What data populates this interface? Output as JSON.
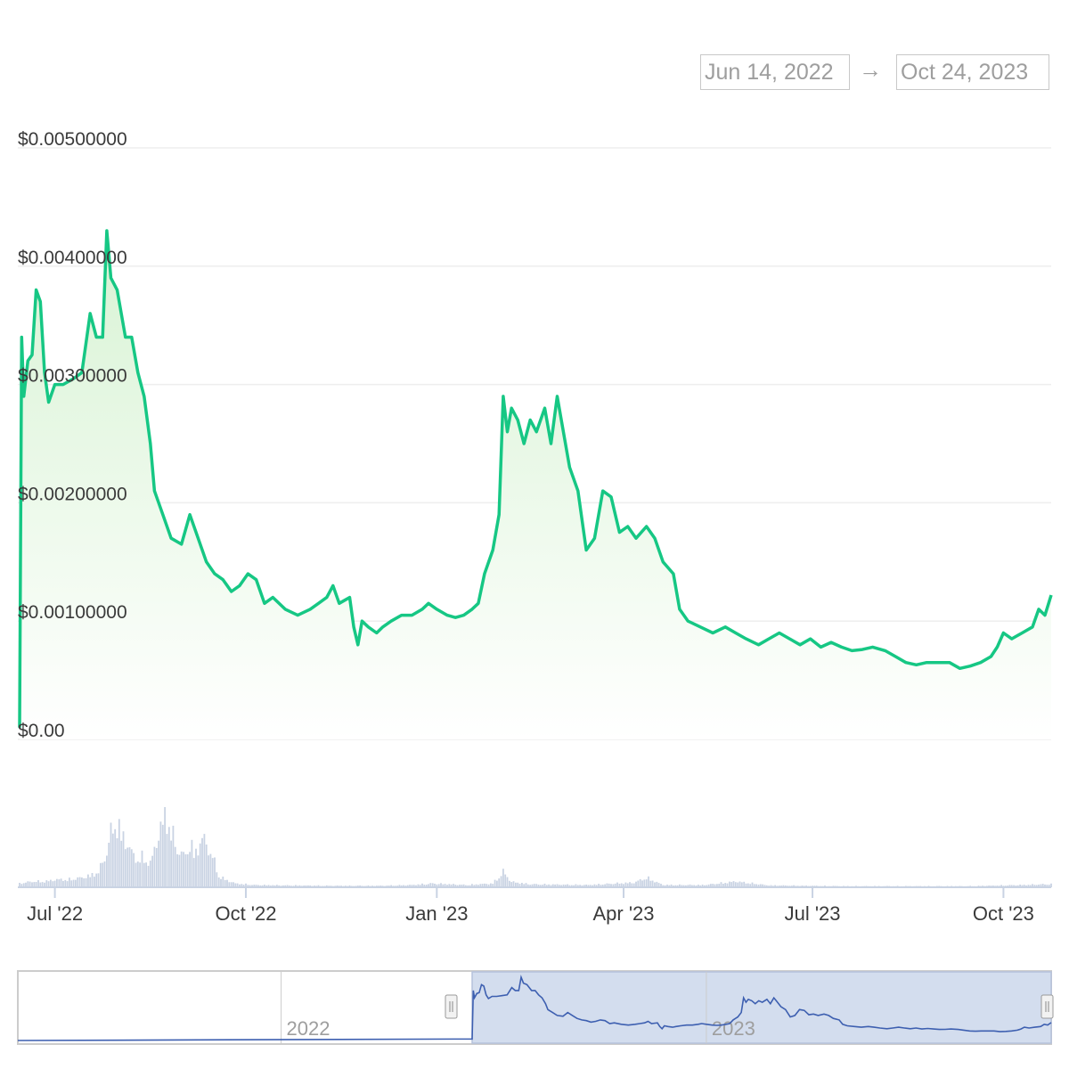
{
  "range_selector": {
    "from": "Jun 14, 2022",
    "arrow": "→",
    "to": "Oct 24, 2023"
  },
  "colors": {
    "price_line": "#16c784",
    "price_fill_top": "#d8f3d4",
    "volume_bar": "#c9d3e3",
    "navigator_line": "#3d5fb0",
    "navigator_selection": "#d3ddee",
    "grid": "#eeeeee",
    "axis_text": "#3a3a3a",
    "muted_text": "#9e9e9e"
  },
  "chart_data": {
    "type": "line",
    "title": "",
    "xlabel": "",
    "ylabel": "",
    "y_ticks": [
      "$0.00",
      "$0.00100000",
      "$0.00200000",
      "$0.00300000",
      "$0.00400000",
      "$0.00500000"
    ],
    "ylim": [
      0,
      0.005
    ],
    "x_ticks": [
      {
        "label": "Jul '22",
        "date": "2022-07-01"
      },
      {
        "label": "Oct '22",
        "date": "2022-10-01"
      },
      {
        "label": "Jan '23",
        "date": "2023-01-01"
      },
      {
        "label": "Apr '23",
        "date": "2023-04-01"
      },
      {
        "label": "Jul '23",
        "date": "2023-07-01"
      },
      {
        "label": "Oct '23",
        "date": "2023-10-01"
      }
    ],
    "xlim": [
      "2022-06-14",
      "2023-10-24"
    ],
    "grid": true,
    "legend": "none",
    "series": [
      {
        "values": [
          [
            "2022-06-14",
            0.0001
          ],
          [
            "2022-06-15",
            0.0034
          ],
          [
            "2022-06-16",
            0.0029
          ],
          [
            "2022-06-18",
            0.0032
          ],
          [
            "2022-06-20",
            0.00325
          ],
          [
            "2022-06-22",
            0.0038
          ],
          [
            "2022-06-24",
            0.0037
          ],
          [
            "2022-06-26",
            0.0031
          ],
          [
            "2022-06-28",
            0.00285
          ],
          [
            "2022-07-01",
            0.003
          ],
          [
            "2022-07-05",
            0.003
          ],
          [
            "2022-07-10",
            0.00305
          ],
          [
            "2022-07-14",
            0.0031
          ],
          [
            "2022-07-18",
            0.0036
          ],
          [
            "2022-07-21",
            0.0034
          ],
          [
            "2022-07-24",
            0.0034
          ],
          [
            "2022-07-26",
            0.0043
          ],
          [
            "2022-07-28",
            0.0039
          ],
          [
            "2022-07-31",
            0.0038
          ],
          [
            "2022-08-04",
            0.0034
          ],
          [
            "2022-08-07",
            0.0034
          ],
          [
            "2022-08-10",
            0.0031
          ],
          [
            "2022-08-13",
            0.0029
          ],
          [
            "2022-08-16",
            0.0025
          ],
          [
            "2022-08-18",
            0.0021
          ],
          [
            "2022-08-22",
            0.0019
          ],
          [
            "2022-08-26",
            0.0017
          ],
          [
            "2022-08-31",
            0.00165
          ],
          [
            "2022-09-04",
            0.0019
          ],
          [
            "2022-09-08",
            0.0017
          ],
          [
            "2022-09-12",
            0.0015
          ],
          [
            "2022-09-16",
            0.0014
          ],
          [
            "2022-09-20",
            0.00135
          ],
          [
            "2022-09-24",
            0.00125
          ],
          [
            "2022-09-28",
            0.0013
          ],
          [
            "2022-10-02",
            0.0014
          ],
          [
            "2022-10-06",
            0.00135
          ],
          [
            "2022-10-10",
            0.00115
          ],
          [
            "2022-10-14",
            0.0012
          ],
          [
            "2022-10-20",
            0.0011
          ],
          [
            "2022-10-26",
            0.00105
          ],
          [
            "2022-11-01",
            0.0011
          ],
          [
            "2022-11-05",
            0.00115
          ],
          [
            "2022-11-09",
            0.0012
          ],
          [
            "2022-11-12",
            0.0013
          ],
          [
            "2022-11-15",
            0.00115
          ],
          [
            "2022-11-18",
            0.00118
          ],
          [
            "2022-11-20",
            0.0012
          ],
          [
            "2022-11-22",
            0.00095
          ],
          [
            "2022-11-24",
            0.0008
          ],
          [
            "2022-11-26",
            0.001
          ],
          [
            "2022-11-29",
            0.00095
          ],
          [
            "2022-12-03",
            0.0009
          ],
          [
            "2022-12-06",
            0.00095
          ],
          [
            "2022-12-10",
            0.001
          ],
          [
            "2022-12-15",
            0.00105
          ],
          [
            "2022-12-20",
            0.00105
          ],
          [
            "2022-12-25",
            0.0011
          ],
          [
            "2022-12-28",
            0.00115
          ],
          [
            "2023-01-01",
            0.0011
          ],
          [
            "2023-01-06",
            0.00105
          ],
          [
            "2023-01-10",
            0.00103
          ],
          [
            "2023-01-14",
            0.00105
          ],
          [
            "2023-01-18",
            0.0011
          ],
          [
            "2023-01-21",
            0.00115
          ],
          [
            "2023-01-24",
            0.0014
          ],
          [
            "2023-01-28",
            0.0016
          ],
          [
            "2023-01-31",
            0.0019
          ],
          [
            "2023-02-02",
            0.0029
          ],
          [
            "2023-02-04",
            0.0026
          ],
          [
            "2023-02-06",
            0.0028
          ],
          [
            "2023-02-09",
            0.0027
          ],
          [
            "2023-02-12",
            0.0025
          ],
          [
            "2023-02-15",
            0.0027
          ],
          [
            "2023-02-18",
            0.0026
          ],
          [
            "2023-02-22",
            0.0028
          ],
          [
            "2023-02-25",
            0.0025
          ],
          [
            "2023-02-28",
            0.0029
          ],
          [
            "2023-03-02",
            0.0027
          ],
          [
            "2023-03-06",
            0.0023
          ],
          [
            "2023-03-10",
            0.0021
          ],
          [
            "2023-03-14",
            0.0016
          ],
          [
            "2023-03-18",
            0.0017
          ],
          [
            "2023-03-22",
            0.0021
          ],
          [
            "2023-03-26",
            0.00205
          ],
          [
            "2023-03-30",
            0.00175
          ],
          [
            "2023-04-03",
            0.0018
          ],
          [
            "2023-04-07",
            0.0017
          ],
          [
            "2023-04-12",
            0.0018
          ],
          [
            "2023-04-16",
            0.0017
          ],
          [
            "2023-04-20",
            0.0015
          ],
          [
            "2023-04-25",
            0.0014
          ],
          [
            "2023-04-28",
            0.0011
          ],
          [
            "2023-05-02",
            0.001
          ],
          [
            "2023-05-08",
            0.00095
          ],
          [
            "2023-05-14",
            0.0009
          ],
          [
            "2023-05-20",
            0.00095
          ],
          [
            "2023-05-25",
            0.0009
          ],
          [
            "2023-05-30",
            0.00085
          ],
          [
            "2023-06-05",
            0.0008
          ],
          [
            "2023-06-10",
            0.00085
          ],
          [
            "2023-06-15",
            0.0009
          ],
          [
            "2023-06-20",
            0.00085
          ],
          [
            "2023-06-25",
            0.0008
          ],
          [
            "2023-06-30",
            0.00085
          ],
          [
            "2023-07-05",
            0.00078
          ],
          [
            "2023-07-10",
            0.00082
          ],
          [
            "2023-07-15",
            0.00078
          ],
          [
            "2023-07-20",
            0.00075
          ],
          [
            "2023-07-25",
            0.00076
          ],
          [
            "2023-07-30",
            0.00078
          ],
          [
            "2023-08-05",
            0.00075
          ],
          [
            "2023-08-10",
            0.0007
          ],
          [
            "2023-08-15",
            0.00065
          ],
          [
            "2023-08-20",
            0.00063
          ],
          [
            "2023-08-25",
            0.00065
          ],
          [
            "2023-08-30",
            0.00065
          ],
          [
            "2023-09-05",
            0.00065
          ],
          [
            "2023-09-10",
            0.0006
          ],
          [
            "2023-09-15",
            0.00062
          ],
          [
            "2023-09-20",
            0.00065
          ],
          [
            "2023-09-25",
            0.0007
          ],
          [
            "2023-09-28",
            0.00078
          ],
          [
            "2023-10-01",
            0.0009
          ],
          [
            "2023-10-05",
            0.00085
          ],
          [
            "2023-10-10",
            0.0009
          ],
          [
            "2023-10-15",
            0.00095
          ],
          [
            "2023-10-18",
            0.0011
          ],
          [
            "2023-10-21",
            0.00105
          ],
          [
            "2023-10-24",
            0.00122
          ]
        ]
      }
    ],
    "volume": {
      "type": "bar",
      "values": [
        [
          "2022-06-14",
          1
        ],
        [
          "2022-06-20",
          1.5
        ],
        [
          "2022-06-26",
          1.5
        ],
        [
          "2022-07-02",
          2
        ],
        [
          "2022-07-08",
          2
        ],
        [
          "2022-07-14",
          2.5
        ],
        [
          "2022-07-18",
          3
        ],
        [
          "2022-07-22",
          4
        ],
        [
          "2022-07-26",
          9
        ],
        [
          "2022-07-28",
          14
        ],
        [
          "2022-07-30",
          17
        ],
        [
          "2022-08-01",
          15
        ],
        [
          "2022-08-04",
          12
        ],
        [
          "2022-08-07",
          9
        ],
        [
          "2022-08-10",
          7
        ],
        [
          "2022-08-13",
          8
        ],
        [
          "2022-08-16",
          6
        ],
        [
          "2022-08-19",
          12
        ],
        [
          "2022-08-21",
          15
        ],
        [
          "2022-08-23",
          19
        ],
        [
          "2022-08-25",
          16
        ],
        [
          "2022-08-27",
          13
        ],
        [
          "2022-08-29",
          10
        ],
        [
          "2022-09-01",
          8
        ],
        [
          "2022-09-04",
          11
        ],
        [
          "2022-09-07",
          9
        ],
        [
          "2022-09-10",
          13
        ],
        [
          "2022-09-12",
          11
        ],
        [
          "2022-09-15",
          8
        ],
        [
          "2022-09-18",
          3
        ],
        [
          "2022-09-21",
          2
        ],
        [
          "2022-09-26",
          1
        ],
        [
          "2022-10-05",
          0.6
        ],
        [
          "2022-10-20",
          0.5
        ],
        [
          "2022-11-10",
          0.4
        ],
        [
          "2022-12-05",
          0.4
        ],
        [
          "2022-12-20",
          0.6
        ],
        [
          "2022-12-30",
          1
        ],
        [
          "2023-01-15",
          0.6
        ],
        [
          "2023-01-28",
          1
        ],
        [
          "2023-02-02",
          4
        ],
        [
          "2023-02-06",
          1.4
        ],
        [
          "2023-02-15",
          0.8
        ],
        [
          "2023-03-01",
          0.7
        ],
        [
          "2023-03-15",
          0.6
        ],
        [
          "2023-03-28",
          1
        ],
        [
          "2023-04-06",
          1.2
        ],
        [
          "2023-04-12",
          2.5
        ],
        [
          "2023-04-20",
          0.6
        ],
        [
          "2023-05-10",
          0.6
        ],
        [
          "2023-05-25",
          1.5
        ],
        [
          "2023-06-10",
          0.5
        ],
        [
          "2023-07-15",
          0.3
        ],
        [
          "2023-08-15",
          0.3
        ],
        [
          "2023-09-15",
          0.3
        ],
        [
          "2023-10-10",
          0.6
        ],
        [
          "2023-10-22",
          0.8
        ]
      ]
    },
    "navigator": {
      "labels": [
        "2022",
        "2023"
      ],
      "selected_range": [
        "2022-06-14",
        "2023-10-24"
      ]
    }
  }
}
